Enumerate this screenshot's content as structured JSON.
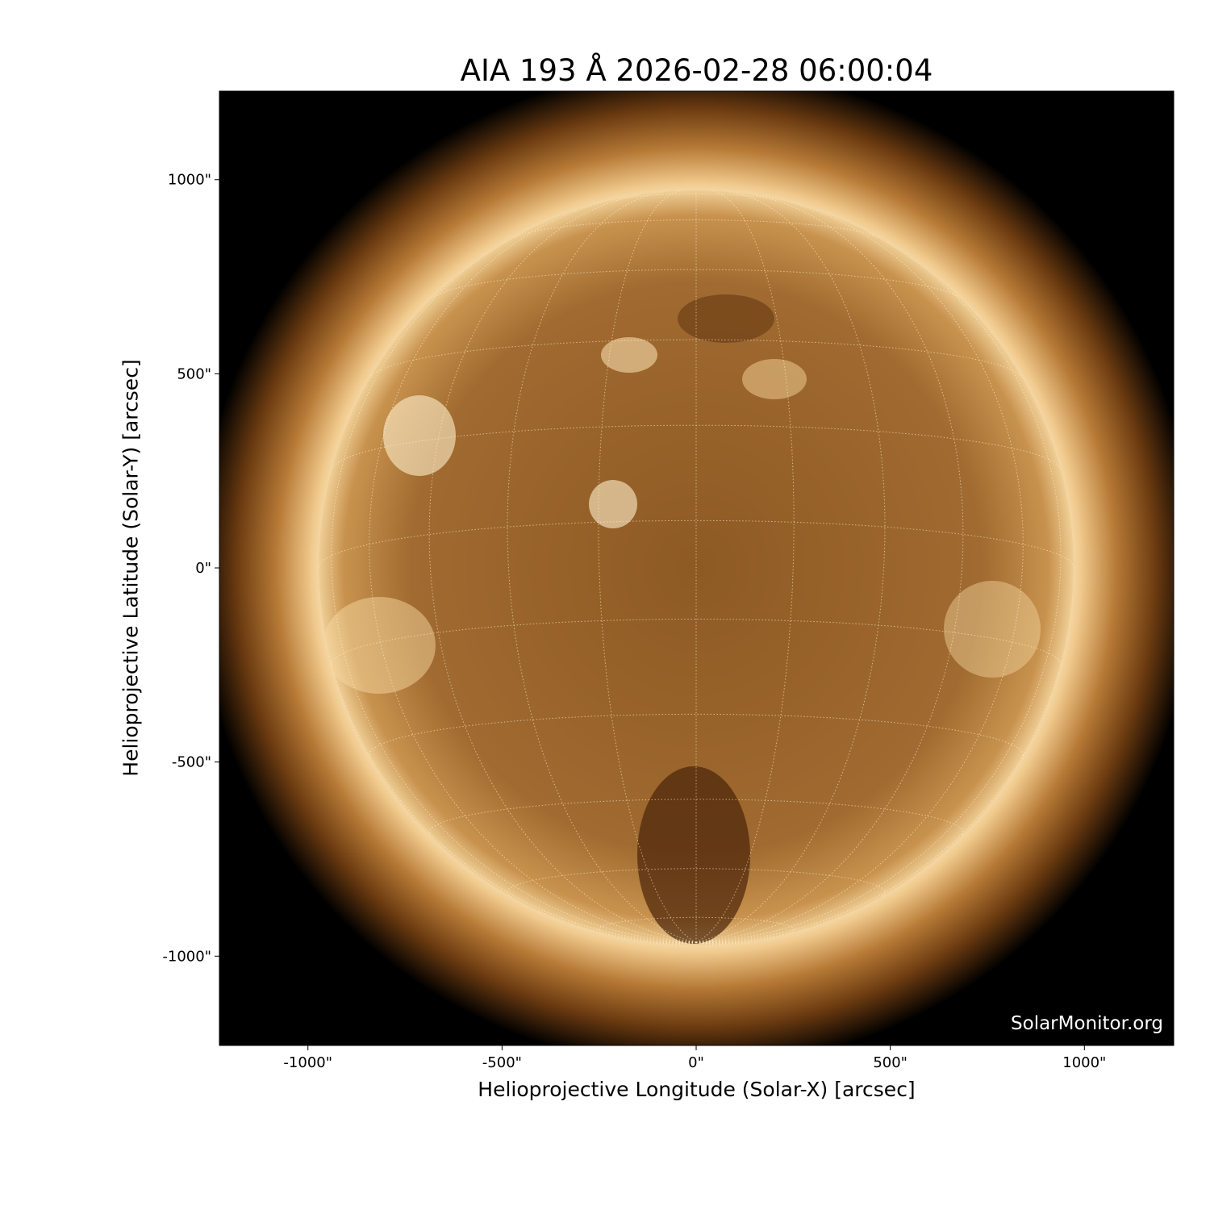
{
  "chart_data": {
    "type": "heatmap",
    "title": "AIA 193 Å 2026-02-28 06:00:04",
    "xlabel": "Helioprojective Longitude (Solar-X) [arcsec]",
    "ylabel": "Helioprojective Latitude (Solar-Y) [arcsec]",
    "xlim": [
      -1228,
      1230
    ],
    "ylim": [
      -1230,
      1228
    ],
    "xticks": [
      {
        "value": -1000,
        "label": "-1000\""
      },
      {
        "value": -500,
        "label": "-500\""
      },
      {
        "value": 0,
        "label": "0\""
      },
      {
        "value": 500,
        "label": "500\""
      },
      {
        "value": 1000,
        "label": "1000\""
      }
    ],
    "yticks": [
      {
        "value": 1000,
        "label": "1000\""
      },
      {
        "value": 500,
        "label": "500\""
      },
      {
        "value": 0,
        "label": "0\""
      },
      {
        "value": -500,
        "label": "-500\""
      },
      {
        "value": -1000,
        "label": "-1000\""
      }
    ],
    "colormap": "sdoaia193",
    "colors": {
      "limb": "#fff3d6",
      "disk": "#9a6428",
      "background": "#000000"
    },
    "grid": "heliographic lat/lon every 15°, dotted",
    "watermark": "SolarMonitor.org"
  }
}
